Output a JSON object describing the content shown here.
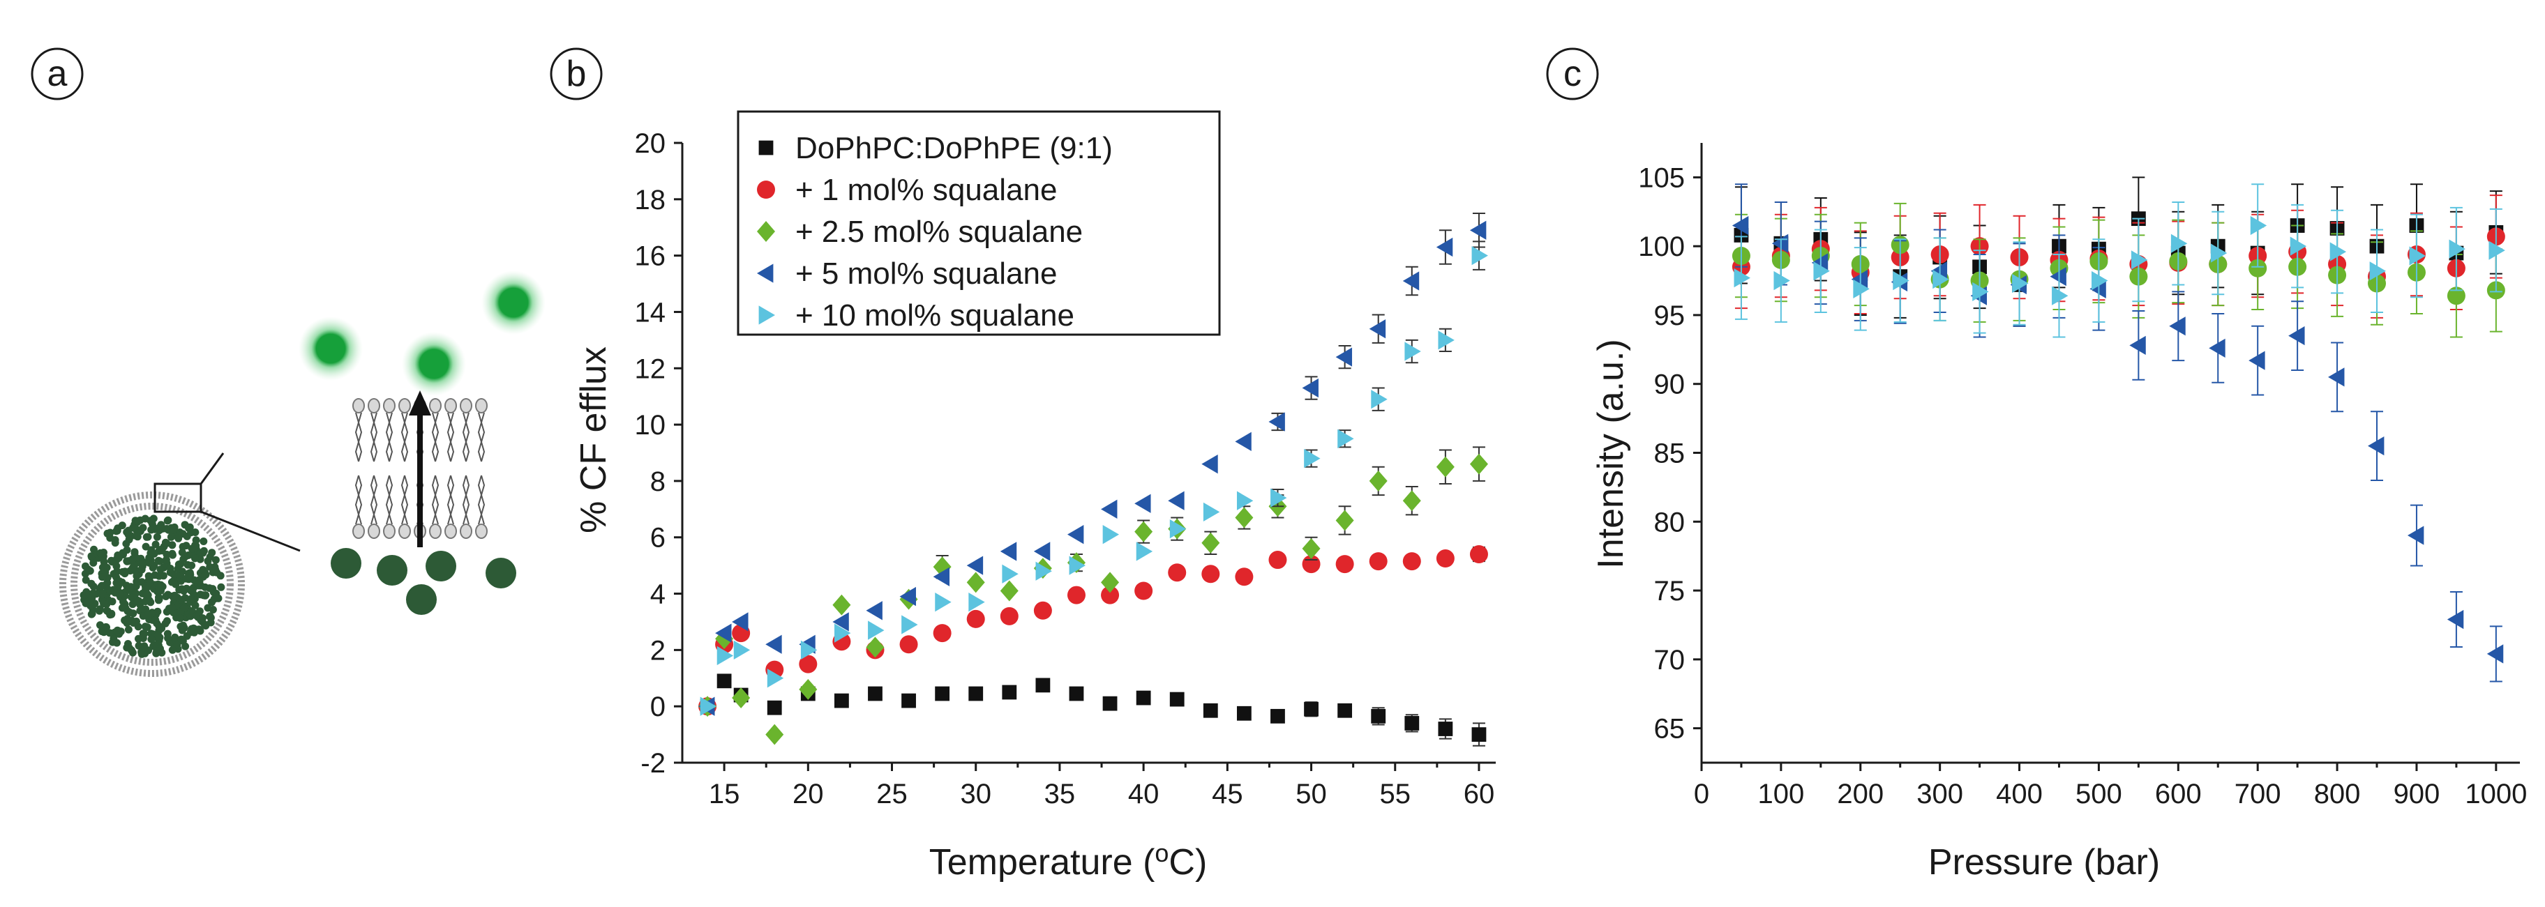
{
  "panels": {
    "a": {
      "label": "a"
    },
    "b": {
      "label": "b"
    },
    "c": {
      "label": "c"
    }
  },
  "colors": {
    "black": "#111111",
    "red": "#e0262b",
    "green": "#6ab42d",
    "blue": "#2557a7",
    "cyan": "#5cc3df",
    "vesicle_fill": "#2d5a36",
    "dye_green": "#1a9c3c",
    "axis": "#1a1a1a"
  },
  "diagram": {
    "description_icons": [
      "vesicle-icon",
      "bilayer-icon",
      "dye-molecule-icon",
      "efflux-arrow-icon"
    ]
  },
  "chart_data": [
    {
      "id": "b",
      "type": "scatter",
      "title": "",
      "xlabel": "Temperature (oC)",
      "xlabel_main": "Temperature (",
      "xlabel_sup": "o",
      "xlabel_end": "C)",
      "ylabel": "% CF efflux",
      "xlim": [
        12.5,
        61
      ],
      "ylim": [
        -2,
        20
      ],
      "xticks": [
        15,
        20,
        25,
        30,
        35,
        40,
        45,
        50,
        55,
        60
      ],
      "yticks": [
        -2,
        0,
        2,
        4,
        6,
        8,
        10,
        12,
        14,
        16,
        18,
        20
      ],
      "grid": false,
      "legend_position": "top-center",
      "series": [
        {
          "name": "DoPhPC:DoPhPE (9:1)",
          "marker": "square",
          "color": "#111111",
          "x": [
            14,
            15,
            16,
            18,
            20,
            22,
            24,
            26,
            28,
            30,
            32,
            34,
            36,
            38,
            40,
            42,
            44,
            46,
            48,
            50,
            52,
            54,
            56,
            58,
            60
          ],
          "y": [
            0.0,
            0.9,
            0.4,
            -0.05,
            0.45,
            0.2,
            0.45,
            0.2,
            0.45,
            0.45,
            0.5,
            0.75,
            0.45,
            0.1,
            0.3,
            0.25,
            -0.15,
            -0.25,
            -0.35,
            -0.1,
            -0.15,
            -0.35,
            -0.6,
            -0.8,
            -1.0
          ],
          "err": [
            0,
            0,
            0,
            0,
            0,
            0,
            0,
            0,
            0,
            0,
            0,
            0,
            0,
            0,
            0,
            0,
            0,
            0.15,
            0,
            0.25,
            0.2,
            0.3,
            0.3,
            0.35,
            0.4
          ]
        },
        {
          "name": "+ 1 mol% squalane",
          "marker": "circle",
          "color": "#e0262b",
          "x": [
            14,
            15,
            16,
            18,
            20,
            22,
            24,
            26,
            28,
            30,
            32,
            34,
            36,
            38,
            40,
            42,
            44,
            46,
            48,
            50,
            52,
            54,
            56,
            58,
            60
          ],
          "y": [
            0.0,
            2.2,
            2.6,
            1.3,
            1.5,
            2.3,
            2.0,
            2.2,
            2.6,
            3.1,
            3.2,
            3.4,
            3.95,
            3.95,
            4.1,
            4.75,
            4.7,
            4.6,
            5.2,
            5.05,
            5.05,
            5.15,
            5.15,
            5.25,
            5.4
          ],
          "err": [
            0,
            0,
            0,
            0,
            0,
            0,
            0,
            0,
            0,
            0,
            0,
            0,
            0,
            0,
            0,
            0,
            0,
            0,
            0.2,
            0.15,
            0.15,
            0.15,
            0.15,
            0.2,
            0.25
          ]
        },
        {
          "name": "+ 2.5 mol% squalane",
          "marker": "diamond",
          "color": "#6ab42d",
          "x": [
            14,
            15,
            16,
            18,
            20,
            22,
            24,
            26,
            28,
            30,
            32,
            34,
            36,
            38,
            40,
            42,
            44,
            46,
            48,
            50,
            52,
            54,
            56,
            58,
            60
          ],
          "y": [
            0.0,
            2.4,
            0.3,
            -1.0,
            0.6,
            3.6,
            2.1,
            3.8,
            4.95,
            4.4,
            4.1,
            4.9,
            5.1,
            4.4,
            6.2,
            6.3,
            5.8,
            6.7,
            7.1,
            5.6,
            6.6,
            8.0,
            7.3,
            8.5,
            8.6
          ],
          "err": [
            0,
            0,
            0,
            0,
            0,
            0,
            0,
            0,
            0.4,
            0,
            0,
            0,
            0.3,
            0,
            0.4,
            0.4,
            0.4,
            0.4,
            0.4,
            0.4,
            0.5,
            0.5,
            0.5,
            0.6,
            0.6
          ]
        },
        {
          "name": "+ 5 mol% squalane",
          "marker": "triangle-left",
          "color": "#2557a7",
          "x": [
            14,
            15,
            16,
            18,
            20,
            22,
            24,
            26,
            28,
            30,
            32,
            34,
            36,
            38,
            40,
            42,
            44,
            46,
            48,
            50,
            52,
            54,
            56,
            58,
            60
          ],
          "y": [
            0.0,
            2.6,
            3.0,
            2.2,
            2.2,
            3.0,
            3.4,
            3.9,
            4.6,
            5.0,
            5.5,
            5.5,
            6.1,
            7.0,
            7.2,
            7.3,
            8.6,
            9.4,
            10.1,
            11.3,
            12.4,
            13.4,
            15.1,
            16.3,
            16.9
          ],
          "err": [
            0,
            0,
            0,
            0,
            0,
            0,
            0,
            0,
            0,
            0,
            0,
            0,
            0,
            0,
            0,
            0,
            0,
            0,
            0.3,
            0.4,
            0.4,
            0.5,
            0.5,
            0.6,
            0.6
          ]
        },
        {
          "name": "+ 10 mol% squalane",
          "marker": "triangle-right",
          "color": "#5cc3df",
          "x": [
            14,
            15,
            16,
            18,
            20,
            22,
            24,
            26,
            28,
            30,
            32,
            34,
            36,
            38,
            40,
            42,
            44,
            46,
            48,
            50,
            52,
            54,
            56,
            58,
            60
          ],
          "y": [
            0.0,
            1.8,
            2.0,
            1.0,
            2.0,
            2.6,
            2.7,
            2.9,
            3.7,
            3.7,
            4.7,
            4.8,
            5.0,
            6.1,
            5.5,
            6.3,
            6.9,
            7.3,
            7.4,
            8.8,
            9.5,
            10.9,
            12.6,
            13.0,
            16.0
          ],
          "err": [
            0,
            0,
            0,
            0,
            0,
            0,
            0,
            0,
            0,
            0,
            0,
            0,
            0,
            0,
            0,
            0,
            0,
            0,
            0.3,
            0.3,
            0.3,
            0.4,
            0.4,
            0.4,
            0.5
          ]
        }
      ]
    },
    {
      "id": "c",
      "type": "scatter",
      "title": "",
      "xlabel": "Pressure (bar)",
      "ylabel": "Intensity (a.u.)",
      "xlim": [
        0,
        1030
      ],
      "ylim": [
        62.5,
        107.5
      ],
      "xticks": [
        0,
        100,
        200,
        300,
        400,
        500,
        600,
        700,
        800,
        900,
        1000
      ],
      "yticks": [
        65,
        70,
        75,
        80,
        85,
        90,
        95,
        100,
        105
      ],
      "grid": false,
      "legend": "none",
      "series": [
        {
          "name": "DoPhPC:DoPhPE (9:1)",
          "marker": "square",
          "color": "#111111",
          "x": [
            50,
            100,
            150,
            200,
            250,
            300,
            350,
            400,
            450,
            500,
            550,
            600,
            650,
            700,
            750,
            800,
            850,
            900,
            950,
            1000
          ],
          "y": [
            100.8,
            100.2,
            100.5,
            98.0,
            97.8,
            99.2,
            98.5,
            97.2,
            100.0,
            99.8,
            102.0,
            99.5,
            100.0,
            99.5,
            101.5,
            101.3,
            100.0,
            101.5,
            99.5,
            101.0
          ],
          "err": [
            3.5,
            3.0,
            3.0,
            3.0,
            3.0,
            3.0,
            3.0,
            3.0,
            3.0,
            3.0,
            3.0,
            3.0,
            3.0,
            3.0,
            3.0,
            3.0,
            3.0,
            3.0,
            3.0,
            3.0
          ]
        },
        {
          "name": "+ 1 mol% squalane",
          "marker": "circle",
          "color": "#e0262b",
          "x": [
            50,
            100,
            150,
            200,
            250,
            300,
            350,
            400,
            450,
            500,
            550,
            600,
            650,
            700,
            750,
            800,
            850,
            900,
            950,
            1000
          ],
          "y": [
            98.5,
            99.3,
            99.8,
            98.1,
            99.2,
            99.4,
            100.0,
            99.2,
            99.0,
            99.1,
            98.7,
            98.8,
            98.7,
            99.3,
            99.6,
            98.7,
            97.8,
            99.4,
            98.4,
            100.7
          ],
          "err": [
            3.0,
            3.0,
            3.0,
            3.0,
            3.0,
            3.0,
            3.0,
            3.0,
            3.0,
            3.0,
            3.0,
            3.0,
            3.0,
            3.0,
            3.0,
            3.0,
            3.0,
            3.0,
            3.0,
            3.0
          ]
        },
        {
          "name": "+ 2.5 mol% squalane",
          "marker": "circle",
          "color": "#6ab42d",
          "x": [
            50,
            100,
            150,
            200,
            250,
            300,
            350,
            400,
            450,
            500,
            550,
            600,
            650,
            700,
            750,
            800,
            850,
            900,
            950,
            1000
          ],
          "y": [
            99.3,
            99.0,
            99.3,
            98.7,
            100.1,
            97.6,
            97.5,
            97.6,
            98.4,
            98.9,
            97.8,
            98.9,
            98.7,
            98.4,
            98.5,
            97.9,
            97.3,
            98.1,
            96.4,
            96.8
          ],
          "err": [
            3.0,
            3.0,
            3.0,
            3.0,
            3.0,
            3.0,
            3.0,
            3.0,
            3.0,
            3.0,
            3.0,
            3.0,
            3.0,
            3.0,
            3.0,
            3.0,
            3.0,
            3.0,
            3.0,
            3.0
          ]
        },
        {
          "name": "+ 5 mol% squalane",
          "marker": "triangle-left",
          "color": "#2557a7",
          "x": [
            50,
            100,
            150,
            200,
            250,
            300,
            350,
            400,
            450,
            500,
            550,
            600,
            650,
            700,
            750,
            800,
            850,
            900,
            950,
            1000
          ],
          "y": [
            101.5,
            100.2,
            98.8,
            97.6,
            97.4,
            98.2,
            96.4,
            97.2,
            97.8,
            96.9,
            92.8,
            94.2,
            92.6,
            91.7,
            93.5,
            90.5,
            85.5,
            79.0,
            72.9,
            70.4
          ],
          "err": [
            3.0,
            3.0,
            3.0,
            3.0,
            3.0,
            3.0,
            3.0,
            3.0,
            3.0,
            3.0,
            2.5,
            2.5,
            2.5,
            2.5,
            2.5,
            2.5,
            2.5,
            2.2,
            2.0,
            2.0
          ]
        },
        {
          "name": "+ 10 mol% squalane",
          "marker": "triangle-right",
          "color": "#5cc3df",
          "x": [
            50,
            100,
            150,
            200,
            250,
            300,
            350,
            400,
            450,
            500,
            550,
            600,
            650,
            700,
            750,
            800,
            850,
            900,
            950,
            1000
          ],
          "y": [
            97.7,
            97.5,
            98.2,
            96.9,
            97.5,
            97.6,
            96.7,
            97.3,
            96.4,
            97.5,
            99.0,
            100.2,
            99.5,
            101.5,
            100.0,
            99.6,
            98.2,
            99.3,
            99.8,
            99.7
          ],
          "err": [
            3.0,
            3.0,
            3.0,
            3.0,
            3.0,
            3.0,
            3.0,
            3.0,
            3.0,
            3.0,
            3.0,
            3.0,
            3.0,
            3.0,
            3.0,
            3.0,
            3.0,
            3.0,
            3.0,
            3.0
          ]
        }
      ]
    }
  ]
}
